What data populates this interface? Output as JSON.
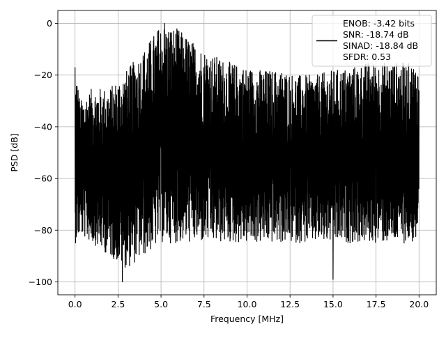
{
  "chart_data": {
    "type": "line",
    "xlabel": "Frequency [MHz]",
    "ylabel": "PSD [dB]",
    "xlim": [
      -1.0,
      21.0
    ],
    "ylim": [
      -105,
      5
    ],
    "xticks": [
      0.0,
      2.5,
      5.0,
      7.5,
      10.0,
      12.5,
      15.0,
      17.5,
      20.0
    ],
    "xtick_labels": [
      "0.0",
      "2.5",
      "5.0",
      "7.5",
      "10.0",
      "12.5",
      "15.0",
      "17.5",
      "20.0"
    ],
    "yticks": [
      0,
      -20,
      -40,
      -60,
      -80,
      -100
    ],
    "ytick_labels": [
      "0",
      "−20",
      "−40",
      "−60",
      "−80",
      "−100"
    ],
    "grid": true,
    "legend_position": "top-right",
    "series": [
      {
        "color": "#000000",
        "legend_lines": [
          "ENOB: -3.42 bits",
          "SNR: -18.74 dB",
          "SINAD: -18.84 dB",
          "SFDR: 0.53"
        ],
        "envelope": {
          "x": [
            0.0,
            0.05,
            0.3,
            1.0,
            2.0,
            3.0,
            4.0,
            5.0,
            6.0,
            7.0,
            8.0,
            9.0,
            10.0,
            11.0,
            12.0,
            13.0,
            14.0,
            15.0,
            16.0,
            17.0,
            18.0,
            19.0,
            20.0
          ],
          "peak_db": [
            -40,
            -17,
            -30,
            -25,
            -25,
            -18,
            -10,
            0,
            -2,
            -8,
            -12,
            -15,
            -17,
            -18,
            -18,
            -20,
            -20,
            -18,
            -17,
            -15,
            -15,
            -15,
            -16
          ],
          "floor_db": [
            -85,
            -85,
            -82,
            -85,
            -90,
            -95,
            -90,
            -85,
            -85,
            -85,
            -85,
            -85,
            -85,
            -85,
            -85,
            -85,
            -85,
            -85,
            -85,
            -85,
            -85,
            -85,
            -85
          ]
        },
        "notable_points": [
          {
            "x": 0.0,
            "y": -17
          },
          {
            "x": 2.75,
            "y": -100
          },
          {
            "x": 5.2,
            "y": 0
          },
          {
            "x": 15.0,
            "y": -99
          }
        ]
      }
    ]
  }
}
